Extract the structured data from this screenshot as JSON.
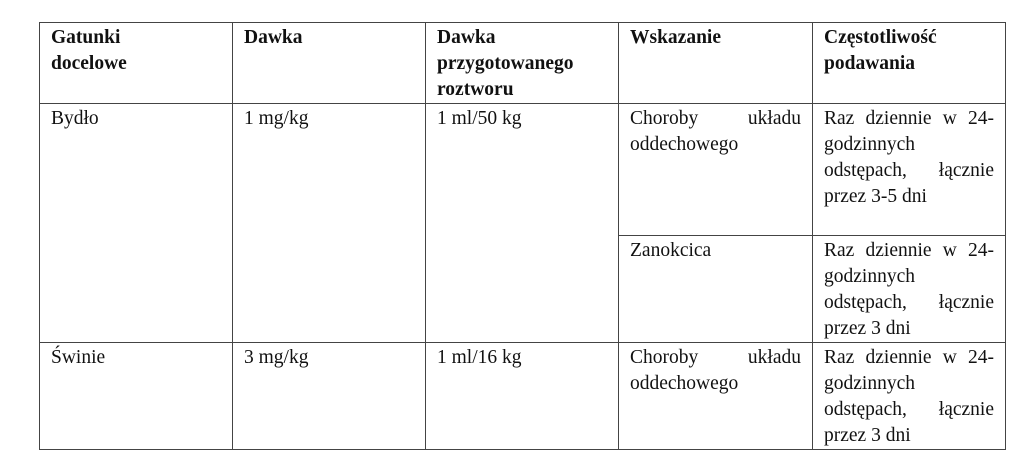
{
  "headers": [
    "Gatunki docelowe",
    "Dawka",
    "Dawka przygotowanego roztworu",
    "Wskazanie",
    "Częstotliwość podawania"
  ],
  "rows": [
    {
      "species": "Bydło",
      "dose": "1 mg/kg",
      "solution_dose": "1 ml/50 kg",
      "indications": [
        {
          "indication": "Choroby układu oddechowego",
          "frequency": "Raz dziennie w 24-godzinnych odstępach, łącznie przez 3-5 dni"
        },
        {
          "indication": "Zanokcica",
          "frequency": "Raz dziennie w 24-godzinnych odstępach, łącznie przez 3 dni"
        }
      ]
    },
    {
      "species": "Świnie",
      "dose": "3 mg/kg",
      "solution_dose": "1 ml/16 kg",
      "indications": [
        {
          "indication": "Choroby układu oddechowego",
          "frequency": "Raz dziennie w 24-godzinnych odstępach, łącznie przez 3 dni"
        }
      ]
    }
  ]
}
